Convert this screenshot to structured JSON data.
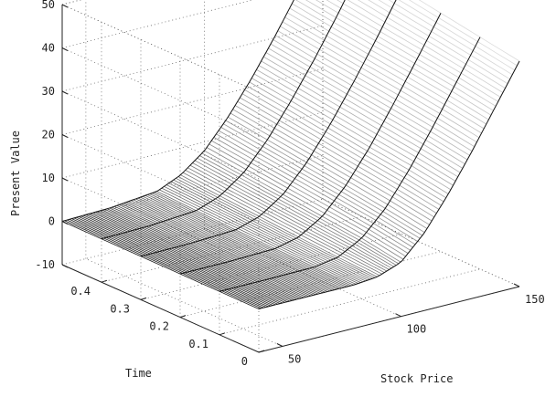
{
  "chart_data": {
    "type": "surface",
    "title": "",
    "xlabel": "Stock Price",
    "ylabel": "Time",
    "zlabel": "Present Value",
    "xlim": [
      40,
      150
    ],
    "ylim": [
      0,
      0.5
    ],
    "zlim": [
      -10,
      50
    ],
    "x_ticks": [
      50,
      100,
      150
    ],
    "y_ticks": [
      0,
      0.1,
      0.2,
      0.3,
      0.4
    ],
    "z_ticks": [
      -10,
      0,
      10,
      20,
      30,
      40,
      50
    ],
    "x_tick_labels": [
      "50",
      "100",
      "150"
    ],
    "y_tick_labels": [
      "0",
      "0.1",
      "0.2",
      "0.3",
      "0.4"
    ],
    "z_tick_labels": [
      "-10",
      "0",
      "10",
      "20",
      "30",
      "40",
      "50"
    ],
    "grid": true,
    "series": [
      {
        "time": 0,
        "x": [
          40,
          60,
          80,
          90,
          100,
          110,
          120,
          130,
          140,
          150
        ],
        "z": [
          0,
          0,
          0,
          0.5,
          2.5,
          8,
          15.5,
          24,
          33,
          42
        ]
      },
      {
        "time": 0.1,
        "x": [
          40,
          60,
          80,
          90,
          100,
          110,
          120,
          130,
          140,
          150
        ],
        "z": [
          0,
          0,
          0.1,
          1,
          4,
          9.5,
          17,
          25.5,
          34.5,
          43.5
        ]
      },
      {
        "time": 0.2,
        "x": [
          40,
          60,
          80,
          90,
          100,
          110,
          120,
          130,
          140,
          150
        ],
        "z": [
          0,
          0,
          0.3,
          1.6,
          5,
          10.8,
          18.2,
          26.8,
          35.8,
          45
        ]
      },
      {
        "time": 0.3,
        "x": [
          40,
          60,
          80,
          90,
          100,
          110,
          120,
          130,
          140,
          150
        ],
        "z": [
          0,
          0.1,
          0.6,
          2.3,
          6,
          12,
          19.5,
          28,
          37,
          46.5
        ]
      },
      {
        "time": 0.4,
        "x": [
          40,
          60,
          80,
          90,
          100,
          110,
          120,
          130,
          140,
          150
        ],
        "z": [
          0,
          0.2,
          1,
          3,
          7,
          13.2,
          20.8,
          29.2,
          38.3,
          48
        ]
      },
      {
        "time": 0.5,
        "x": [
          40,
          60,
          80,
          90,
          100,
          110,
          120,
          130,
          140,
          150
        ],
        "z": [
          0,
          0.3,
          1.4,
          3.8,
          8,
          14.4,
          22,
          30.5,
          39.6,
          49.5
        ]
      }
    ]
  }
}
